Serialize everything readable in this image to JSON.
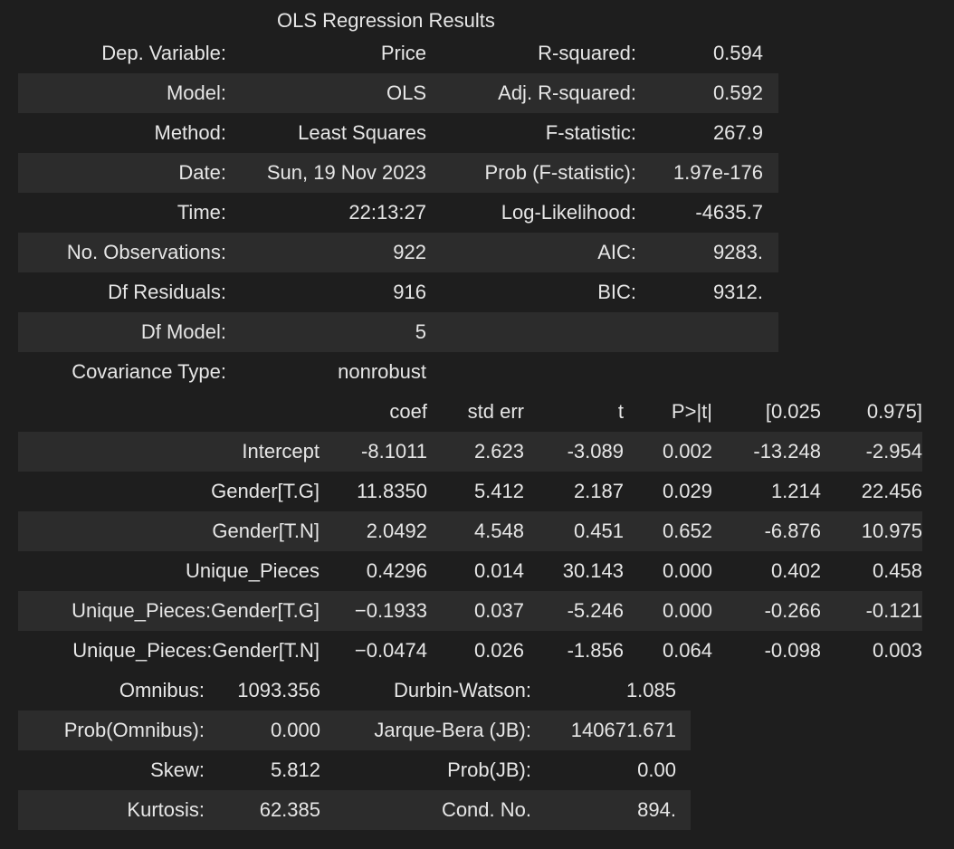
{
  "title": "OLS Regression Results",
  "summary": {
    "rows": [
      [
        "Dep. Variable:",
        "Price",
        "R-squared:",
        "0.594"
      ],
      [
        "Model:",
        "OLS",
        "Adj. R-squared:",
        "0.592"
      ],
      [
        "Method:",
        "Least Squares",
        "F-statistic:",
        "267.9"
      ],
      [
        "Date:",
        "Sun, 19 Nov 2023",
        "Prob (F-statistic):",
        "1.97e-176"
      ],
      [
        "Time:",
        "22:13:27",
        "Log-Likelihood:",
        "-4635.7"
      ],
      [
        "No. Observations:",
        "922",
        "AIC:",
        "9283."
      ],
      [
        "Df Residuals:",
        "916",
        "BIC:",
        "9312."
      ],
      [
        "Df Model:",
        "5",
        "",
        ""
      ],
      [
        "Covariance Type:",
        "nonrobust",
        "",
        ""
      ]
    ]
  },
  "coefficients": {
    "headers": [
      "",
      "coef",
      "std err",
      "t",
      "P>|t|",
      "[0.025",
      "0.975]"
    ],
    "rows": [
      [
        "Intercept",
        "-8.1011",
        "2.623",
        "-3.089",
        "0.002",
        "-13.248",
        "-2.954"
      ],
      [
        "Gender[T.G]",
        "11.8350",
        "5.412",
        "2.187",
        "0.029",
        "1.214",
        "22.456"
      ],
      [
        "Gender[T.N]",
        "2.0492",
        "4.548",
        "0.451",
        "0.652",
        "-6.876",
        "10.975"
      ],
      [
        "Unique_Pieces",
        "0.4296",
        "0.014",
        "30.143",
        "0.000",
        "0.402",
        "0.458"
      ],
      [
        "Unique_Pieces:Gender[T.G]",
        "−0.1933",
        "0.037",
        "-5.246",
        "0.000",
        "-0.266",
        "-0.121"
      ],
      [
        "Unique_Pieces:Gender[T.N]",
        "−0.0474",
        "0.026",
        "-1.856",
        "0.064",
        "-0.098",
        "0.003"
      ]
    ]
  },
  "diagnostics": {
    "rows": [
      [
        "Omnibus:",
        "1093.356",
        "Durbin-Watson:",
        "1.085"
      ],
      [
        "Prob(Omnibus):",
        "0.000",
        "Jarque-Bera (JB):",
        "140671.671"
      ],
      [
        "Skew:",
        "5.812",
        "Prob(JB):",
        "0.00"
      ],
      [
        "Kurtosis:",
        "62.385",
        "Cond. No.",
        "894."
      ]
    ]
  }
}
